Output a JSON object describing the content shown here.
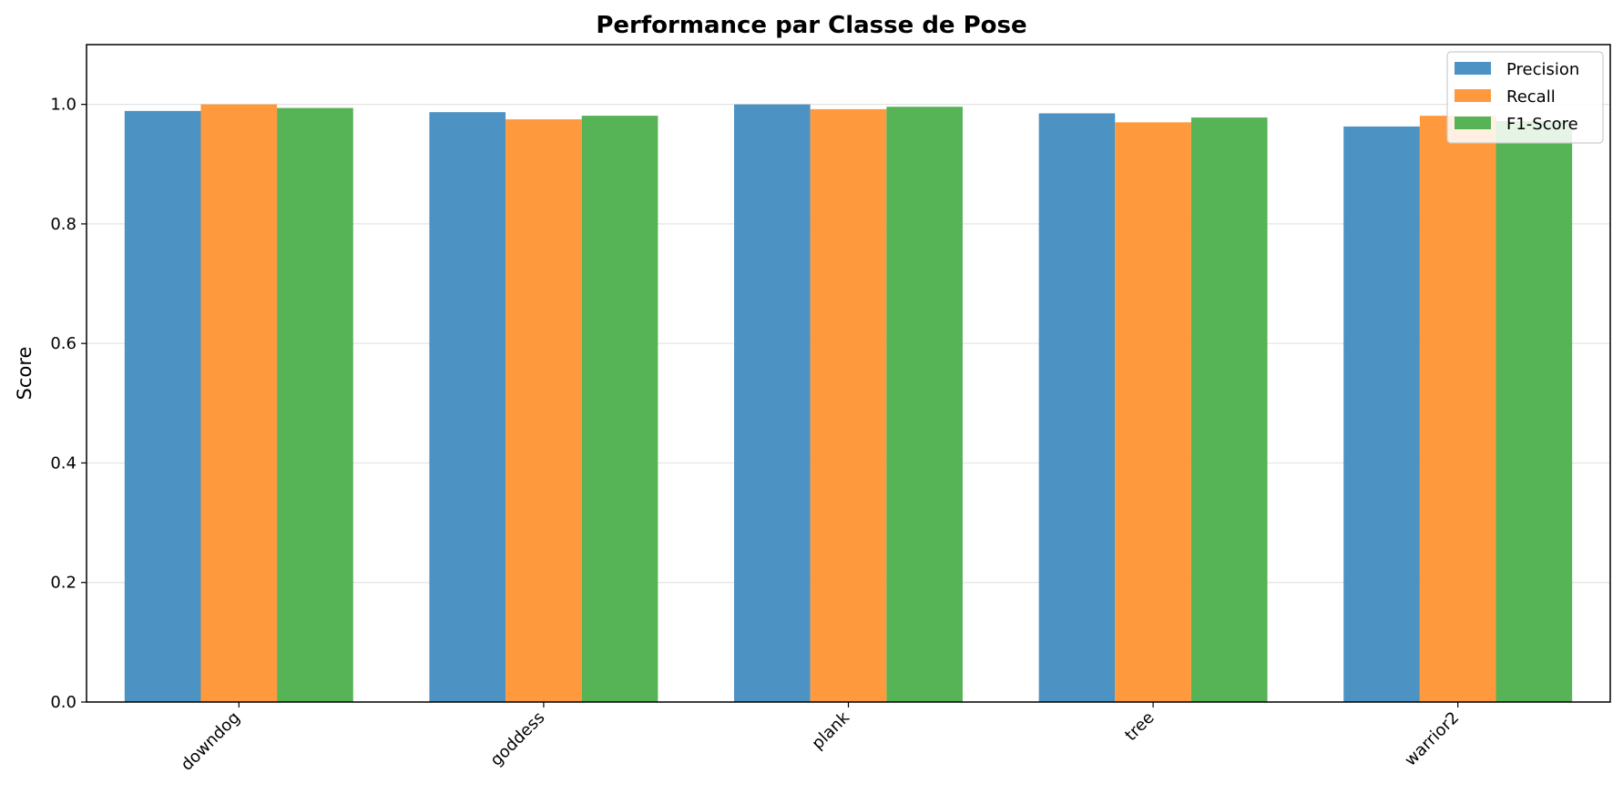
{
  "chart_data": {
    "type": "bar",
    "title": "Performance par Classe de Pose",
    "xlabel": "",
    "ylabel": "Score",
    "categories": [
      "downdog",
      "goddess",
      "plank",
      "tree",
      "warrior2"
    ],
    "series": [
      {
        "name": "Precision",
        "color": "#4c92c3",
        "values": [
          0.989,
          0.987,
          1.0,
          0.985,
          0.963
        ]
      },
      {
        "name": "Recall",
        "color": "#ff993e",
        "values": [
          1.0,
          0.975,
          0.992,
          0.97,
          0.981
        ]
      },
      {
        "name": "F1-Score",
        "color": "#56b356",
        "values": [
          0.994,
          0.981,
          0.996,
          0.978,
          0.972
        ]
      }
    ],
    "ylim": [
      0,
      1.1
    ],
    "yticks": [
      "0.0",
      "0.2",
      "0.4",
      "0.6",
      "0.8",
      "1.0"
    ],
    "grid": true,
    "legend_position": "top-right"
  }
}
